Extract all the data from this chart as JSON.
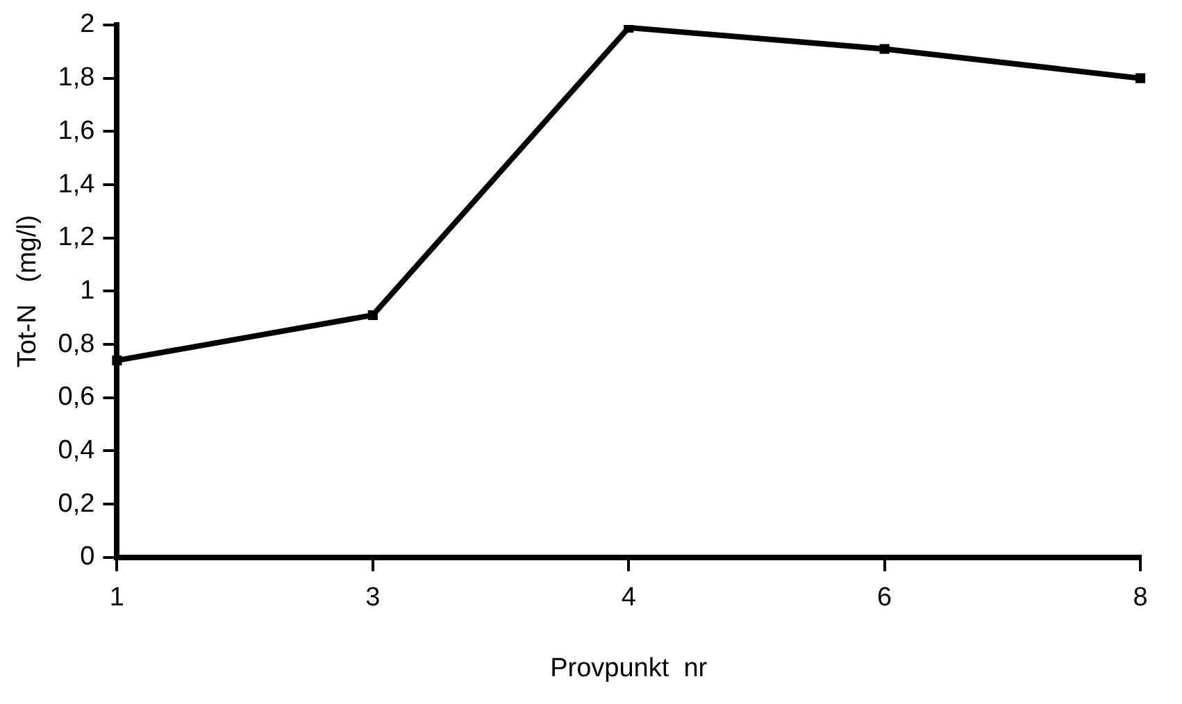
{
  "chart_data": {
    "type": "line",
    "xlabel": "Provpunkt  nr",
    "ylabel": "Tot-N   (mg/l)",
    "categories": [
      "1",
      "3",
      "4",
      "6",
      "8"
    ],
    "series": [
      {
        "color": "#000000",
        "values": [
          0.74,
          0.91,
          1.99,
          1.91,
          1.8
        ]
      }
    ],
    "ylim": [
      0,
      2
    ],
    "yticks": [
      0,
      {
        "value": 0.2,
        "label": "0,2"
      },
      {
        "value": 0.4,
        "label": "0,4"
      },
      {
        "value": 0.6,
        "label": "0,6"
      },
      {
        "value": 0.8,
        "label": "0,8"
      },
      1,
      {
        "value": 1.2,
        "label": "1,2"
      },
      {
        "value": 1.4,
        "label": "1,4"
      },
      {
        "value": 1.6,
        "label": "1,6"
      },
      {
        "value": 1.8,
        "label": "1,8"
      },
      2
    ],
    "grid": false,
    "legend": false,
    "marker": "square",
    "line_style": "solid"
  }
}
